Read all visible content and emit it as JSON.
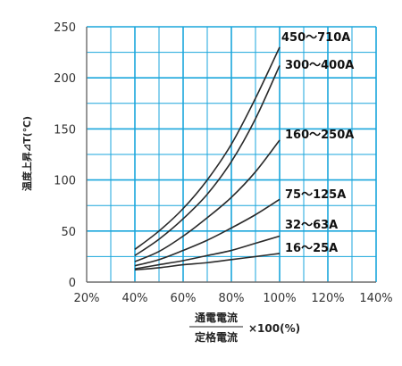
{
  "chart_data": {
    "type": "line",
    "ylabel": "温度上昇⊿T(℃)",
    "xlabel": {
      "numerator": "通電電流",
      "denominator": "定格電流",
      "suffix": "×100(%)"
    },
    "xlim": [
      20,
      140
    ],
    "ylim": [
      0,
      250
    ],
    "x_ticks": [
      "20%",
      "40%",
      "60%",
      "80%",
      "100%",
      "120%",
      "140%"
    ],
    "y_ticks": [
      "0",
      "50",
      "100",
      "150",
      "200",
      "250"
    ],
    "grid": true,
    "colors": {
      "grid": "#1aa6dc",
      "axis": "#6b6b6b",
      "line": "#2a2a2a"
    },
    "series": [
      {
        "name": "450～710A",
        "x": [
          40,
          50,
          60,
          70,
          80,
          90,
          100
        ],
        "y": [
          32,
          50,
          72,
          100,
          135,
          180,
          230
        ]
      },
      {
        "name": "300～400A",
        "x": [
          40,
          50,
          60,
          70,
          80,
          90,
          100
        ],
        "y": [
          26,
          42,
          62,
          86,
          118,
          160,
          212
        ]
      },
      {
        "name": "160～250A",
        "x": [
          40,
          50,
          60,
          70,
          80,
          90,
          100
        ],
        "y": [
          20,
          30,
          45,
          63,
          83,
          108,
          139
        ]
      },
      {
        "name": "75～125A",
        "x": [
          40,
          50,
          60,
          70,
          80,
          90,
          100
        ],
        "y": [
          16,
          22,
          31,
          41,
          53,
          66,
          81
        ]
      },
      {
        "name": "32～63A",
        "x": [
          40,
          50,
          60,
          70,
          80,
          90,
          100
        ],
        "y": [
          13,
          17,
          21,
          26,
          31,
          38,
          45
        ]
      },
      {
        "name": "16～25A",
        "x": [
          40,
          50,
          60,
          70,
          80,
          90,
          100
        ],
        "y": [
          12,
          14,
          17,
          19,
          22,
          25,
          28
        ]
      }
    ]
  }
}
